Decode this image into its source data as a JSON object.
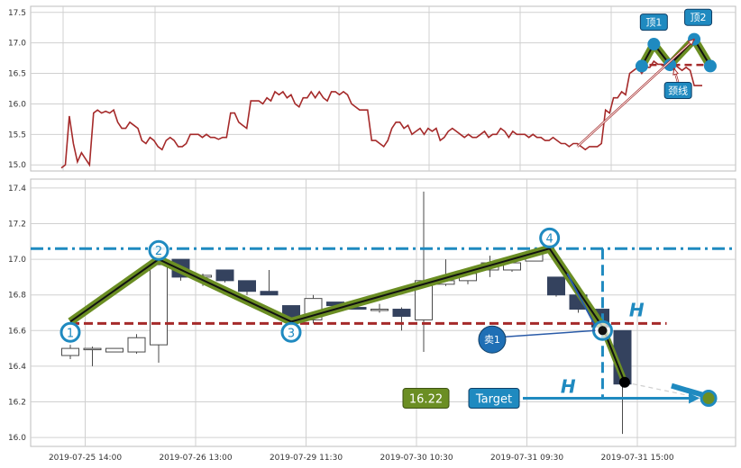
{
  "chart_data": [
    {
      "type": "line",
      "panel": "top",
      "ylim": [
        14.9,
        17.6
      ],
      "yticks": [
        "15.0",
        "15.5",
        "16.0",
        "16.5",
        "17.0",
        "17.5"
      ],
      "grid": true,
      "series": [
        {
          "color": "#a52a2a",
          "values": [
            14.95,
            15.0,
            15.8,
            15.35,
            15.05,
            15.2,
            15.1,
            15.0,
            15.85,
            15.9,
            15.85,
            15.88,
            15.85,
            15.9,
            15.7,
            15.6,
            15.6,
            15.7,
            15.65,
            15.6,
            15.4,
            15.35,
            15.45,
            15.4,
            15.3,
            15.25,
            15.4,
            15.45,
            15.4,
            15.3,
            15.3,
            15.35,
            15.5,
            15.5,
            15.5,
            15.45,
            15.5,
            15.45,
            15.45,
            15.42,
            15.45,
            15.45,
            15.85,
            15.85,
            15.7,
            15.65,
            15.6,
            16.05,
            16.05,
            16.05,
            16.0,
            16.1,
            16.05,
            16.2,
            16.15,
            16.2,
            16.1,
            16.15,
            16.0,
            15.95,
            16.1,
            16.1,
            16.2,
            16.1,
            16.2,
            16.1,
            16.05,
            16.2,
            16.2,
            16.15,
            16.2,
            16.15,
            16.0,
            15.95,
            15.9,
            15.9,
            15.9,
            15.4,
            15.4,
            15.35,
            15.3,
            15.4,
            15.6,
            15.7,
            15.7,
            15.6,
            15.65,
            15.5,
            15.55,
            15.6,
            15.5,
            15.6,
            15.55,
            15.6,
            15.4,
            15.45,
            15.55,
            15.6,
            15.55,
            15.5,
            15.45,
            15.5,
            15.45,
            15.45,
            15.5,
            15.55,
            15.45,
            15.5,
            15.5,
            15.6,
            15.55,
            15.45,
            15.55,
            15.5,
            15.5,
            15.5,
            15.45,
            15.5,
            15.45,
            15.45,
            15.4,
            15.4,
            15.45,
            15.4,
            15.35,
            15.35,
            15.3,
            15.35,
            15.35,
            15.3,
            15.25,
            15.3,
            15.3,
            15.3,
            15.35,
            15.9,
            15.85,
            16.1,
            16.1,
            16.2,
            16.15,
            16.5,
            16.55,
            16.6,
            16.5,
            16.6,
            16.6,
            16.7,
            16.65,
            16.65,
            16.6,
            16.7,
            16.65,
            16.6,
            16.55,
            16.6,
            16.55,
            16.3,
            16.3,
            16.3
          ]
        }
      ],
      "pattern_line_color": "#6b8e23",
      "pattern_points": [
        {
          "i": 144,
          "y": 16.62
        },
        {
          "i": 147,
          "y": 16.98
        },
        {
          "i": 151,
          "y": 16.64
        },
        {
          "i": 157,
          "y": 17.06
        },
        {
          "i": 161,
          "y": 16.62
        }
      ],
      "neckline": {
        "y": 16.64,
        "color": "#a52a2a"
      },
      "annotations": [
        {
          "text": "顶1",
          "i": 147,
          "y": 17.34
        },
        {
          "text": "颈线",
          "i": 153,
          "y": 16.22
        },
        {
          "text": "顶2",
          "i": 158,
          "y": 17.42
        }
      ],
      "arrows": [
        {
          "from": {
            "i": 128,
            "y": 15.3
          },
          "to": {
            "i": 157,
            "y": 17.06
          }
        },
        {
          "from": {
            "i": 153,
            "y": 16.35
          },
          "to": {
            "i": 152,
            "y": 16.58
          }
        }
      ]
    },
    {
      "type": "candlestick",
      "panel": "bottom",
      "ylim": [
        15.95,
        17.45
      ],
      "yticks": [
        "16.0",
        "16.2",
        "16.4",
        "16.6",
        "16.8",
        "17.0",
        "17.2",
        "17.4"
      ],
      "xtick_labels": [
        "2019-07-25 14:00",
        "2019-07-26 13:00",
        "2019-07-29 11:30",
        "2019-07-30 10:30",
        "2019-07-31 09:30",
        "2019-07-31 15:00"
      ],
      "xtick_index": [
        1,
        6,
        11,
        16,
        21,
        26
      ],
      "grid": true,
      "candles": [
        {
          "o": 16.46,
          "h": 16.52,
          "l": 16.44,
          "c": 16.5
        },
        {
          "o": 16.5,
          "h": 16.51,
          "l": 16.4,
          "c": 16.5
        },
        {
          "o": 16.48,
          "h": 16.5,
          "l": 16.48,
          "c": 16.5
        },
        {
          "o": 16.48,
          "h": 16.58,
          "l": 16.47,
          "c": 16.56
        },
        {
          "o": 16.52,
          "h": 17.0,
          "l": 16.42,
          "c": 16.97
        },
        {
          "o": 17.0,
          "h": 17.0,
          "l": 16.88,
          "c": 16.9
        },
        {
          "o": 16.9,
          "h": 16.92,
          "l": 16.85,
          "c": 16.91
        },
        {
          "o": 16.94,
          "h": 16.94,
          "l": 16.87,
          "c": 16.88
        },
        {
          "o": 16.88,
          "h": 16.88,
          "l": 16.8,
          "c": 16.82
        },
        {
          "o": 16.82,
          "h": 16.94,
          "l": 16.8,
          "c": 16.8
        },
        {
          "o": 16.74,
          "h": 16.74,
          "l": 16.66,
          "c": 16.67
        },
        {
          "o": 16.66,
          "h": 16.8,
          "l": 16.64,
          "c": 16.78
        },
        {
          "o": 16.76,
          "h": 16.76,
          "l": 16.73,
          "c": 16.74
        },
        {
          "o": 16.73,
          "h": 16.75,
          "l": 16.72,
          "c": 16.72
        },
        {
          "o": 16.72,
          "h": 16.75,
          "l": 16.7,
          "c": 16.72
        },
        {
          "o": 16.72,
          "h": 16.73,
          "l": 16.6,
          "c": 16.68
        },
        {
          "o": 16.66,
          "h": 17.38,
          "l": 16.48,
          "c": 16.88
        },
        {
          "o": 16.86,
          "h": 17.0,
          "l": 16.85,
          "c": 16.88
        },
        {
          "o": 16.88,
          "h": 16.94,
          "l": 16.86,
          "c": 16.92
        },
        {
          "o": 16.94,
          "h": 17.02,
          "l": 16.9,
          "c": 16.98
        },
        {
          "o": 16.94,
          "h": 17.0,
          "l": 16.93,
          "c": 16.98
        },
        {
          "o": 16.99,
          "h": 17.06,
          "l": 16.99,
          "c": 17.04
        },
        {
          "o": 16.9,
          "h": 16.9,
          "l": 16.79,
          "c": 16.8
        },
        {
          "o": 16.8,
          "h": 16.8,
          "l": 16.7,
          "c": 16.72
        },
        {
          "o": 16.72,
          "h": 16.72,
          "l": 16.62,
          "c": 16.62
        },
        {
          "o": 16.6,
          "h": 16.6,
          "l": 16.02,
          "c": 16.3
        }
      ],
      "pattern_points": [
        {
          "label": "1",
          "i": 0,
          "y": 16.59
        },
        {
          "label": "2",
          "i": 4,
          "y": 17.05
        },
        {
          "label": "3",
          "i": 10,
          "y": 16.59
        },
        {
          "label": "4",
          "i": 21.7,
          "y": 17.12
        }
      ],
      "pattern_path": [
        {
          "i": 0,
          "y": 16.65
        },
        {
          "i": 4,
          "y": 17.0
        },
        {
          "i": 10,
          "y": 16.65
        },
        {
          "i": 21.7,
          "y": 17.06
        },
        {
          "i": 24.1,
          "y": 16.62
        }
      ],
      "resistance": {
        "y": 17.06,
        "color": "#1f8ac0"
      },
      "neckline": {
        "y": 16.64,
        "color": "#a52a2a"
      },
      "sell_point": {
        "label": "卖1",
        "i": 24.1,
        "y": 16.6,
        "marker_i": 19.1,
        "marker_y": 16.55
      },
      "black_point": {
        "i": 25.1,
        "y": 16.31
      },
      "target": {
        "label": "Target",
        "price": "16.22",
        "i": 28.9,
        "y": 16.22
      },
      "height_labels": [
        "H",
        "H"
      ]
    }
  ]
}
